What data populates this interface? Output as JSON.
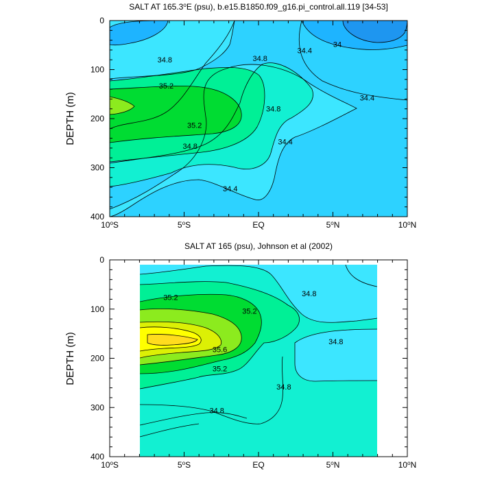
{
  "chart_data": [
    {
      "type": "contour",
      "title": "SALT AT 165.3°E (psu), b.e15.B1850.f09_g16.pi_control.all.119 [34-53]",
      "title_parts": {
        "a": "SALT AT 165.3",
        "sup": "o",
        "b": "E (psu), b.e15.B1850.f09_g16.pi_control.all.119 [34-53]"
      },
      "ylabel": "DEPTH (m)",
      "xlim": [
        -10,
        10
      ],
      "ylim": [
        400,
        0
      ],
      "x_ticks": [
        {
          "v": -10,
          "num": "10",
          "hemi": "S"
        },
        {
          "v": -5,
          "num": "5",
          "hemi": "S"
        },
        {
          "v": 0,
          "num": "EQ",
          "hemi": ""
        },
        {
          "v": 5,
          "num": "5",
          "hemi": "N"
        },
        {
          "v": 10,
          "num": "10",
          "hemi": "N"
        }
      ],
      "y_ticks": [
        0,
        100,
        200,
        300,
        400
      ],
      "contour_levels": [
        34.0,
        34.2,
        34.4,
        34.6,
        34.8,
        35.0,
        35.2
      ],
      "contour_labels": [
        {
          "text": "34.8",
          "x": -6.3,
          "y": 80
        },
        {
          "text": "34.8",
          "x": 0.1,
          "y": 77
        },
        {
          "text": "34.4",
          "x": 3.1,
          "y": 61
        },
        {
          "text": "34",
          "x": 5.3,
          "y": 48
        },
        {
          "text": "35.2",
          "x": -6.2,
          "y": 133
        },
        {
          "text": "34.8",
          "x": 1.0,
          "y": 180
        },
        {
          "text": "34.4",
          "x": 7.3,
          "y": 157
        },
        {
          "text": "35.2",
          "x": -4.3,
          "y": 213
        },
        {
          "text": "34.4",
          "x": 1.8,
          "y": 247
        },
        {
          "text": "34.8",
          "x": -4.6,
          "y": 256
        },
        {
          "text": "34.4",
          "x": -1.9,
          "y": 343
        }
      ]
    },
    {
      "type": "contour",
      "title": "SALT AT 165 (psu), Johnson et al (2002)",
      "ylabel": "DEPTH (m)",
      "xlim": [
        -10,
        10
      ],
      "ylim": [
        400,
        0
      ],
      "x_ticks": [
        {
          "v": -10,
          "num": "10",
          "hemi": "S"
        },
        {
          "v": -5,
          "num": "5",
          "hemi": "S"
        },
        {
          "v": 0,
          "num": "EQ",
          "hemi": ""
        },
        {
          "v": 5,
          "num": "5",
          "hemi": "N"
        },
        {
          "v": 10,
          "num": "10",
          "hemi": "N"
        }
      ],
      "y_ticks": [
        0,
        100,
        200,
        300,
        400
      ],
      "data_extent_x": [
        -8,
        8
      ],
      "data_extent_y": [
        10,
        400
      ],
      "contour_levels": [
        34.4,
        34.6,
        34.8,
        35.0,
        35.2,
        35.4,
        35.6,
        35.8
      ],
      "contour_labels": [
        {
          "text": "35.2",
          "x": -5.9,
          "y": 76
        },
        {
          "text": "35.2",
          "x": -0.6,
          "y": 104
        },
        {
          "text": "34.8",
          "x": 3.4,
          "y": 68
        },
        {
          "text": "35.6",
          "x": -2.6,
          "y": 182
        },
        {
          "text": "34.8",
          "x": 5.2,
          "y": 166
        },
        {
          "text": "35.2",
          "x": -2.6,
          "y": 221
        },
        {
          "text": "34.8",
          "x": 1.7,
          "y": 258
        },
        {
          "text": "34.8",
          "x": -2.8,
          "y": 306
        }
      ]
    }
  ],
  "colors": {
    "s34_0": "#1e96f0",
    "s34_2": "#1eb4ff",
    "s34_4": "#2dd2ff",
    "s34_6": "#3ce6ff",
    "s34_8": "#12f0d2",
    "s35_0": "#00f096",
    "s35_2": "#00dc32",
    "s35_4": "#8ceb1e",
    "s35_6": "#dcf005",
    "s35_8": "#ffff00",
    "s35_9": "#ffdc1e"
  }
}
